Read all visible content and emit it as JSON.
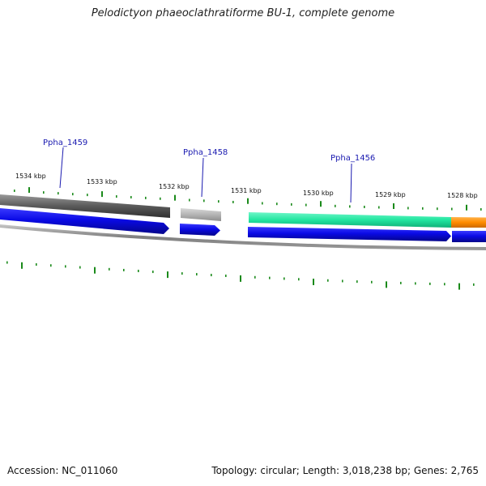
{
  "title": "Pelodictyon phaeoclathratiforme BU-1, complete genome",
  "footer": {
    "accession_text": "Accession: NC_011060",
    "summary_text": "Topology: circular; Length: 3,018,238 bp; Genes: 2,765"
  },
  "scale": {
    "unit": "kbp",
    "major_ticks": [
      "1534 kbp",
      "1533 kbp",
      "1532 kbp",
      "1531 kbp",
      "1530 kbp",
      "1529 kbp",
      "1528 kbp"
    ]
  },
  "genes": [
    {
      "label": "Ppha_1459",
      "color": "#606060"
    },
    {
      "label": "Ppha_1458",
      "color": "#b0b0b0"
    },
    {
      "label": "Ppha_1456",
      "color": "#22e6a0"
    }
  ],
  "colors": {
    "cds_arrow": "#0a0ae6",
    "orange_feature": "#ff8c00",
    "tick": "#1a8a1a",
    "backbone": "#808080",
    "label": "#1a1ab0"
  }
}
